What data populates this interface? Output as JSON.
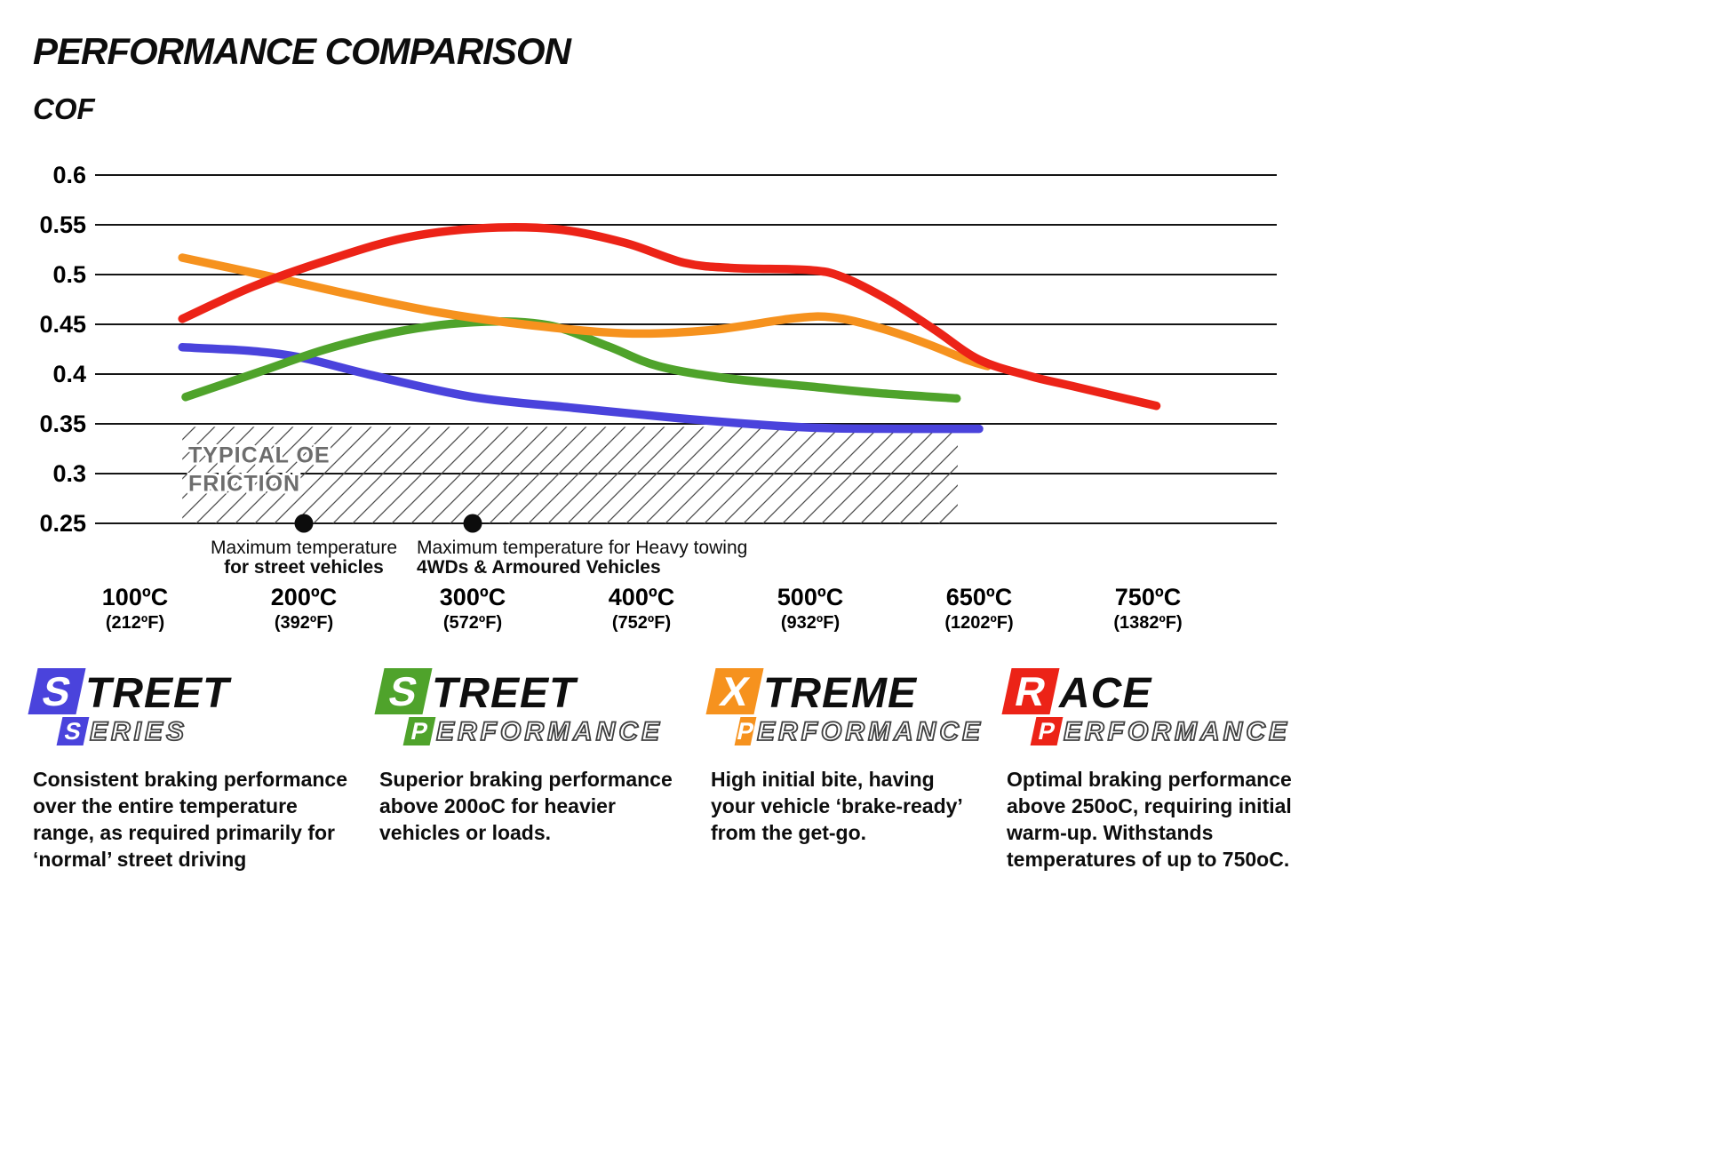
{
  "title": "PERFORMANCE COMPARISON",
  "chart_data": {
    "type": "line",
    "title": "PERFORMANCE COMPARISON",
    "ylabel": "COF",
    "xlabel": "",
    "ylim": [
      0.25,
      0.6
    ],
    "grid": true,
    "legend_position": "bottom",
    "ytick_labels": [
      "0.6",
      "0.55",
      "0.5",
      "0.45",
      "0.4",
      "0.35",
      "0.3",
      "0.25"
    ],
    "x_ticks": [
      {
        "temp": 100,
        "c": "100ºC",
        "f": "(212ºF)"
      },
      {
        "temp": 200,
        "c": "200ºC",
        "f": "(392ºF)"
      },
      {
        "temp": 300,
        "c": "300ºC",
        "f": "(572ºF)"
      },
      {
        "temp": 400,
        "c": "400ºC",
        "f": "(752ºF)"
      },
      {
        "temp": 500,
        "c": "500ºC",
        "f": "(932ºF)"
      },
      {
        "temp": 650,
        "c": "650ºC",
        "f": "(1202ºF)"
      },
      {
        "temp": 750,
        "c": "750ºC",
        "f": "(1382ºF)"
      }
    ],
    "series": [
      {
        "name": "Street Series",
        "color": "#4a43dc",
        "points": [
          [
            128,
            0.427
          ],
          [
            170,
            0.423
          ],
          [
            200,
            0.416
          ],
          [
            240,
            0.399
          ],
          [
            300,
            0.377
          ],
          [
            360,
            0.366
          ],
          [
            420,
            0.356
          ],
          [
            480,
            0.348
          ],
          [
            520,
            0.3455
          ],
          [
            580,
            0.345
          ],
          [
            650,
            0.345
          ]
        ]
      },
      {
        "name": "Street Performance",
        "color": "#4fa32b",
        "points": [
          [
            130,
            0.377
          ],
          [
            175,
            0.403
          ],
          [
            215,
            0.426
          ],
          [
            260,
            0.444
          ],
          [
            305,
            0.4525
          ],
          [
            345,
            0.449
          ],
          [
            380,
            0.428
          ],
          [
            410,
            0.408
          ],
          [
            450,
            0.396
          ],
          [
            500,
            0.3875
          ],
          [
            560,
            0.381
          ],
          [
            630,
            0.3755
          ]
        ]
      },
      {
        "name": "Xtreme Performance",
        "color": "#f6921e",
        "points": [
          [
            128,
            0.517
          ],
          [
            180,
            0.498
          ],
          [
            230,
            0.479
          ],
          [
            280,
            0.462
          ],
          [
            330,
            0.45
          ],
          [
            390,
            0.441
          ],
          [
            440,
            0.444
          ],
          [
            490,
            0.456
          ],
          [
            520,
            0.457
          ],
          [
            560,
            0.447
          ],
          [
            600,
            0.432
          ],
          [
            640,
            0.414
          ],
          [
            655,
            0.408
          ]
        ]
      },
      {
        "name": "Race Performance",
        "color": "#ec2317",
        "points": [
          [
            128,
            0.4555
          ],
          [
            170,
            0.488
          ],
          [
            215,
            0.515
          ],
          [
            260,
            0.537
          ],
          [
            305,
            0.5465
          ],
          [
            350,
            0.5455
          ],
          [
            390,
            0.532
          ],
          [
            425,
            0.512
          ],
          [
            455,
            0.5065
          ],
          [
            500,
            0.5045
          ],
          [
            530,
            0.497
          ],
          [
            570,
            0.474
          ],
          [
            610,
            0.445
          ],
          [
            650,
            0.4145
          ],
          [
            680,
            0.398
          ],
          [
            705,
            0.388
          ],
          [
            755,
            0.368
          ]
        ]
      }
    ],
    "oe_band": {
      "label_line1": "TYPICAL OE",
      "label_line2": "FRICTION",
      "y_range": [
        0.25,
        0.347
      ],
      "temp_range": [
        128,
        631
      ]
    },
    "annotations": [
      {
        "temp": 200,
        "value": 0.25,
        "anchor": "middle",
        "line1": "Maximum temperature",
        "line2": "for street vehicles"
      },
      {
        "temp": 300,
        "value": 0.25,
        "anchor": "start",
        "line1": "Maximum temperature for Heavy towing",
        "line2": "4WDs & Armoured Vehicles"
      }
    ]
  },
  "legend": [
    {
      "name": "Street Series",
      "color": "#4a43dc",
      "word1_initial": "S",
      "word1_rest": "TREET",
      "word2_initial": "S",
      "word2_rest": "ERIES",
      "description": "Consistent braking performance over the entire temperature range, as required primarily for ‘normal’ street driving"
    },
    {
      "name": "Street Performance",
      "color": "#4fa32b",
      "word1_initial": "S",
      "word1_rest": "TREET",
      "word2_initial": "P",
      "word2_rest": "ERFORMANCE",
      "description": "Superior braking performance above 200oC for heavier vehicles or loads."
    },
    {
      "name": "Xtreme Performance",
      "color": "#f6921e",
      "word1_initial": "X",
      "word1_rest": "TREME",
      "word2_initial": "P",
      "word2_rest": "ERFORMANCE",
      "description": "High initial bite, having your vehicle ‘brake-ready’ from the get-go."
    },
    {
      "name": "Race Performance",
      "color": "#ec2317",
      "word1_initial": "R",
      "word1_rest": "ACE",
      "word2_initial": "P",
      "word2_rest": "ERFORMANCE",
      "description": "Optimal braking performance above 250oC, requiring initial warm-up. Withstands temperatures of up to 750oC."
    }
  ]
}
